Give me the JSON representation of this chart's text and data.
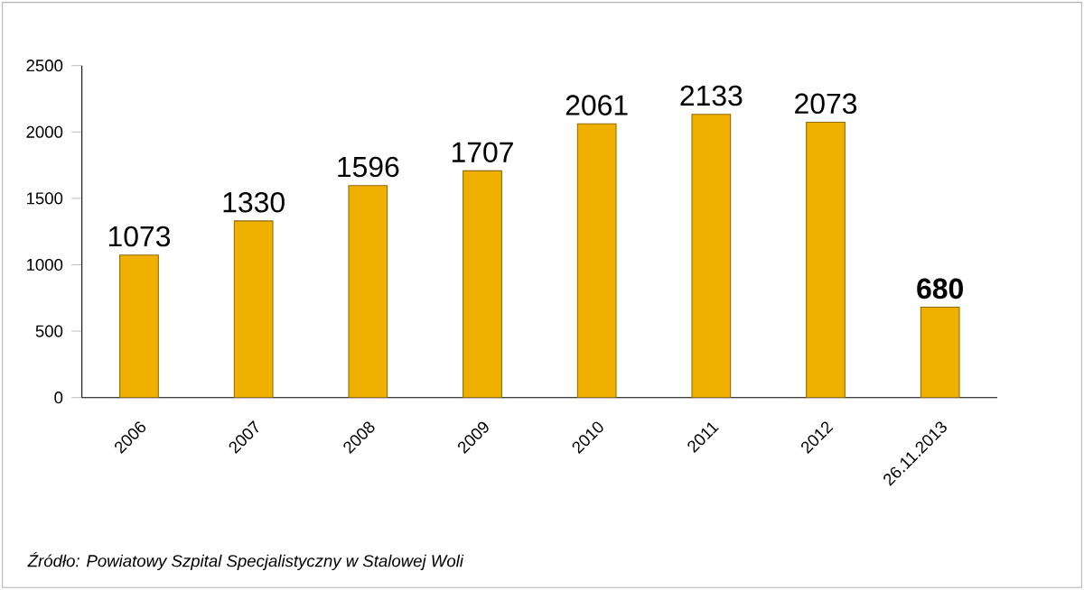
{
  "chart_data": {
    "type": "bar",
    "categories": [
      "2006",
      "2007",
      "2008",
      "2009",
      "2010",
      "2011",
      "2012",
      "26.11.2013"
    ],
    "values": [
      1073,
      1330,
      1596,
      1707,
      2061,
      2133,
      2073,
      680
    ],
    "value_labels": [
      "1073",
      "1330",
      "1596",
      "1707",
      "2061",
      "2133",
      "2073",
      "**680**"
    ],
    "color": "#f0b000",
    "ylim": [
      0,
      2500
    ],
    "yticks": [
      0,
      500,
      1000,
      1500,
      2000,
      2500
    ],
    "grid": false,
    "annotations": [
      "*Źródło: Powiatowy Szpital Specjalistyczny w Stalowej Woli*"
    ]
  }
}
